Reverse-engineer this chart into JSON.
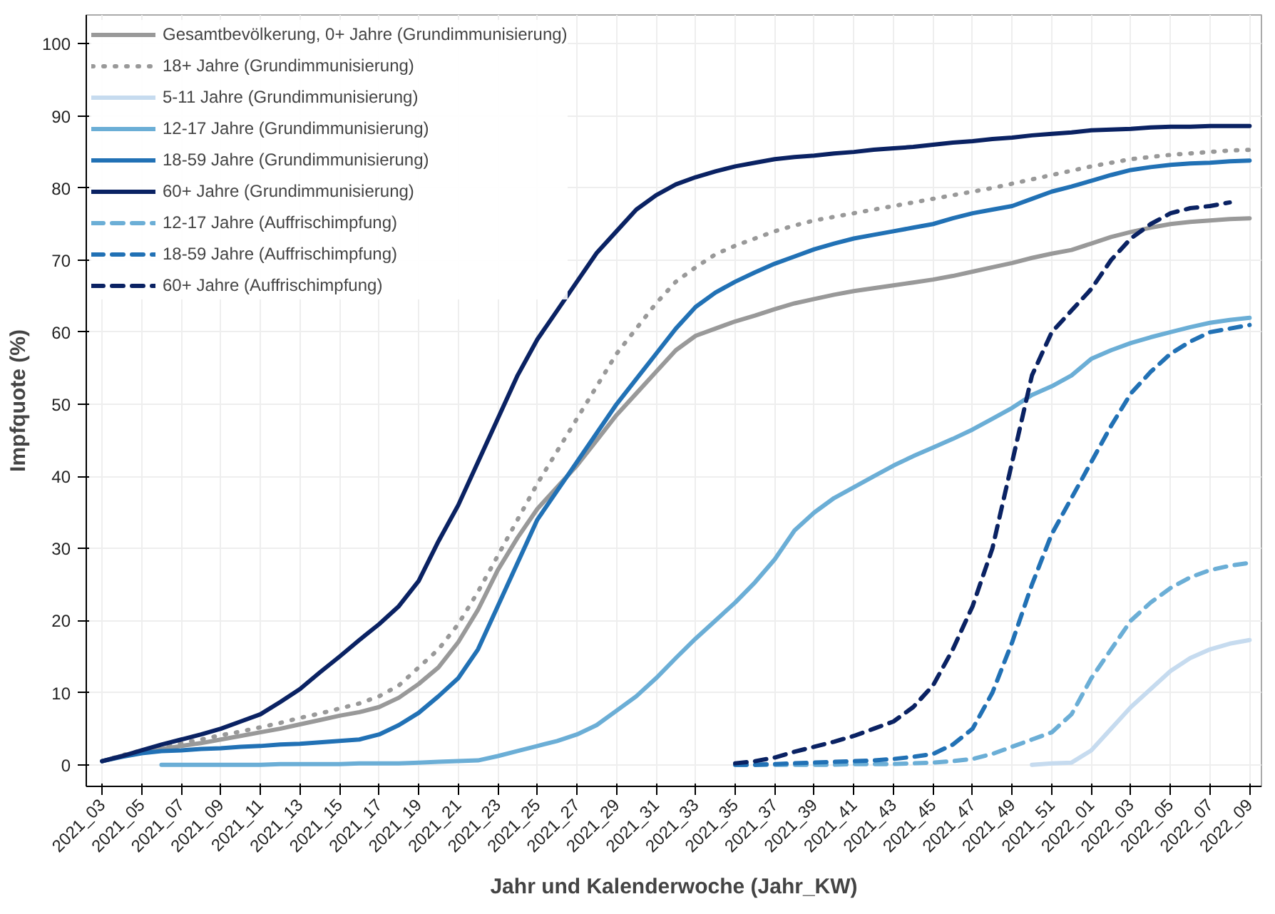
{
  "chart_data": {
    "type": "line",
    "xlabel": "Jahr und Kalenderwoche (Jahr_KW)",
    "ylabel": "Impfquote (%)",
    "categories": [
      "2021_03",
      null,
      "2021_05",
      null,
      "2021_07",
      null,
      "2021_09",
      null,
      "2021_11",
      null,
      "2021_13",
      null,
      "2021_15",
      null,
      "2021_17",
      null,
      "2021_19",
      null,
      "2021_21",
      null,
      "2021_23",
      null,
      "2021_25",
      null,
      "2021_27",
      null,
      "2021_29",
      null,
      "2021_31",
      null,
      "2021_33",
      null,
      "2021_35",
      null,
      "2021_37",
      null,
      "2021_39",
      null,
      "2021_41",
      null,
      "2021_43",
      null,
      "2021_45",
      null,
      "2021_47",
      null,
      "2021_49",
      null,
      "2021_51",
      null,
      "2022_01",
      null,
      "2022_03",
      null,
      "2022_05",
      null,
      "2022_07",
      null,
      "2022_09"
    ],
    "ylim": [
      -3,
      104
    ],
    "yticks": [
      0,
      10,
      20,
      30,
      40,
      50,
      60,
      70,
      80,
      90,
      100
    ],
    "grid": true,
    "legend": "top left",
    "series": [
      {
        "name": "Gesamtbevölkerung, 0+ Jahre (Grundimmunisierung)",
        "color": "#999999",
        "line_style": "solid",
        "values": [
          0.5,
          1.2,
          1.8,
          2.2,
          2.6,
          3.0,
          3.5,
          4.0,
          4.5,
          5.0,
          5.6,
          6.2,
          6.8,
          7.3,
          8.0,
          9.3,
          11.2,
          13.5,
          17,
          21.5,
          27,
          31.5,
          35.5,
          38.5,
          41.5,
          45,
          48.5,
          51.5,
          54.5,
          57.5,
          59.5,
          60.5,
          61.5,
          62.3,
          63.2,
          64,
          64.6,
          65.2,
          65.7,
          66.1,
          66.5,
          66.9,
          67.3,
          67.8,
          68.4,
          69,
          69.6,
          70.3,
          70.9,
          71.4,
          72.3,
          73.2,
          73.9,
          74.5,
          75,
          75.3,
          75.5,
          75.7,
          75.8
        ]
      },
      {
        "name": "18+ Jahre (Grundimmunisierung)",
        "color": "#999999",
        "line_style": "dotted",
        "values": [
          0.5,
          1.3,
          2.0,
          2.5,
          3.0,
          3.5,
          4.1,
          4.6,
          5.2,
          5.8,
          6.5,
          7.1,
          7.8,
          8.5,
          9.5,
          11,
          13.5,
          16,
          19.5,
          24,
          29,
          34,
          39,
          43.5,
          48,
          52.5,
          57,
          60.5,
          64,
          67,
          69,
          70.8,
          72,
          73,
          74,
          74.8,
          75.5,
          76,
          76.5,
          77,
          77.5,
          78,
          78.5,
          79,
          79.5,
          80,
          80.6,
          81.2,
          81.8,
          82.4,
          83,
          83.5,
          84,
          84.3,
          84.6,
          84.8,
          85,
          85.2,
          85.3
        ]
      },
      {
        "name": "5-11 Jahre (Grundimmunisierung)",
        "color": "#c6dbef",
        "line_style": "solid",
        "values": [
          null,
          null,
          null,
          null,
          null,
          null,
          null,
          null,
          null,
          null,
          null,
          null,
          null,
          null,
          null,
          null,
          null,
          null,
          null,
          null,
          null,
          null,
          null,
          null,
          null,
          null,
          null,
          null,
          null,
          null,
          null,
          null,
          null,
          null,
          null,
          null,
          null,
          null,
          null,
          null,
          null,
          null,
          null,
          null,
          null,
          null,
          null,
          0,
          0.2,
          0.3,
          2,
          5,
          8,
          10.5,
          13,
          14.8,
          16,
          16.8,
          17.3
        ]
      },
      {
        "name": "12-17 Jahre (Grundimmunisierung)",
        "color": "#6baed6",
        "line_style": "solid",
        "values": [
          null,
          null,
          null,
          0,
          0,
          0,
          0,
          0,
          0,
          0.1,
          0.1,
          0.1,
          0.1,
          0.2,
          0.2,
          0.2,
          0.3,
          0.4,
          0.5,
          0.6,
          1.2,
          1.9,
          2.6,
          3.3,
          4.2,
          5.5,
          7.5,
          9.5,
          12,
          14.8,
          17.5,
          20,
          22.5,
          25.3,
          28.5,
          32.5,
          35,
          37,
          38.5,
          40,
          41.5,
          42.8,
          44,
          45.2,
          46.5,
          48,
          49.5,
          51.3,
          52.5,
          54,
          56.3,
          57.5,
          58.5,
          59.3,
          60,
          60.7,
          61.3,
          61.7,
          62
        ]
      },
      {
        "name": "18-59 Jahre (Grundimmunisierung)",
        "color": "#2171b5",
        "line_style": "solid",
        "values": [
          0.5,
          1.1,
          1.6,
          1.9,
          2.0,
          2.2,
          2.3,
          2.5,
          2.6,
          2.8,
          2.9,
          3.1,
          3.3,
          3.5,
          4.2,
          5.5,
          7.2,
          9.5,
          12,
          16,
          22,
          28,
          34,
          38,
          42,
          46,
          50,
          53.5,
          57,
          60.5,
          63.5,
          65.5,
          67,
          68.3,
          69.5,
          70.5,
          71.5,
          72.3,
          73,
          73.5,
          74,
          74.5,
          75,
          75.8,
          76.5,
          77,
          77.5,
          78.5,
          79.5,
          80.2,
          81,
          81.8,
          82.5,
          82.9,
          83.2,
          83.4,
          83.5,
          83.7,
          83.8
        ]
      },
      {
        "name": "60+ Jahre (Grundimmunisierung)",
        "color": "#0a2263",
        "line_style": "solid",
        "values": [
          0.5,
          1.2,
          2.0,
          2.8,
          3.5,
          4.2,
          5.0,
          6.0,
          7.0,
          8.7,
          10.5,
          12.8,
          15,
          17.3,
          19.5,
          22,
          25.5,
          31,
          36,
          42,
          48,
          54,
          59,
          63,
          67,
          71,
          74,
          77,
          79,
          80.5,
          81.5,
          82.3,
          83,
          83.5,
          84,
          84.3,
          84.5,
          84.8,
          85,
          85.3,
          85.5,
          85.7,
          86,
          86.3,
          86.5,
          86.8,
          87,
          87.3,
          87.5,
          87.7,
          88,
          88.1,
          88.2,
          88.4,
          88.5,
          88.5,
          88.6,
          88.6,
          88.6
        ]
      },
      {
        "name": "12-17 Jahre (Auffrischimpfung)",
        "color": "#6baed6",
        "line_style": "dashed",
        "values": [
          null,
          null,
          null,
          null,
          null,
          null,
          null,
          null,
          null,
          null,
          null,
          null,
          null,
          null,
          null,
          null,
          null,
          null,
          null,
          null,
          null,
          null,
          null,
          null,
          null,
          null,
          null,
          null,
          null,
          null,
          null,
          null,
          0,
          0,
          0,
          0,
          0,
          0,
          0.1,
          0.1,
          0.1,
          0.2,
          0.3,
          0.5,
          0.8,
          1.5,
          2.5,
          3.5,
          4.5,
          7,
          12,
          16,
          20,
          22.5,
          24.5,
          26,
          27,
          27.6,
          28
        ]
      },
      {
        "name": "18-59 Jahre (Auffrischimpfung)",
        "color": "#2171b5",
        "line_style": "dashed",
        "values": [
          null,
          null,
          null,
          null,
          null,
          null,
          null,
          null,
          null,
          null,
          null,
          null,
          null,
          null,
          null,
          null,
          null,
          null,
          null,
          null,
          null,
          null,
          null,
          null,
          null,
          null,
          null,
          null,
          null,
          null,
          null,
          null,
          0,
          0,
          0.1,
          0.2,
          0.3,
          0.4,
          0.5,
          0.6,
          0.8,
          1.1,
          1.5,
          2.8,
          5,
          10,
          17,
          25,
          32,
          37,
          42,
          47,
          51.5,
          54.5,
          57,
          58.7,
          60,
          60.5,
          61
        ]
      },
      {
        "name": "60+ Jahre (Auffrischimpfung)",
        "color": "#0a2263",
        "line_style": "dashed",
        "values": [
          null,
          null,
          null,
          null,
          null,
          null,
          null,
          null,
          null,
          null,
          null,
          null,
          null,
          null,
          null,
          null,
          null,
          null,
          null,
          null,
          null,
          null,
          null,
          null,
          null,
          null,
          null,
          null,
          null,
          null,
          null,
          null,
          0.2,
          0.5,
          1,
          1.8,
          2.5,
          3.2,
          4,
          5,
          6,
          8,
          11,
          16,
          22,
          30,
          42,
          54,
          60,
          63,
          66,
          70,
          73,
          75,
          76.5,
          77.2,
          77.5,
          78,
          null
        ]
      }
    ]
  }
}
